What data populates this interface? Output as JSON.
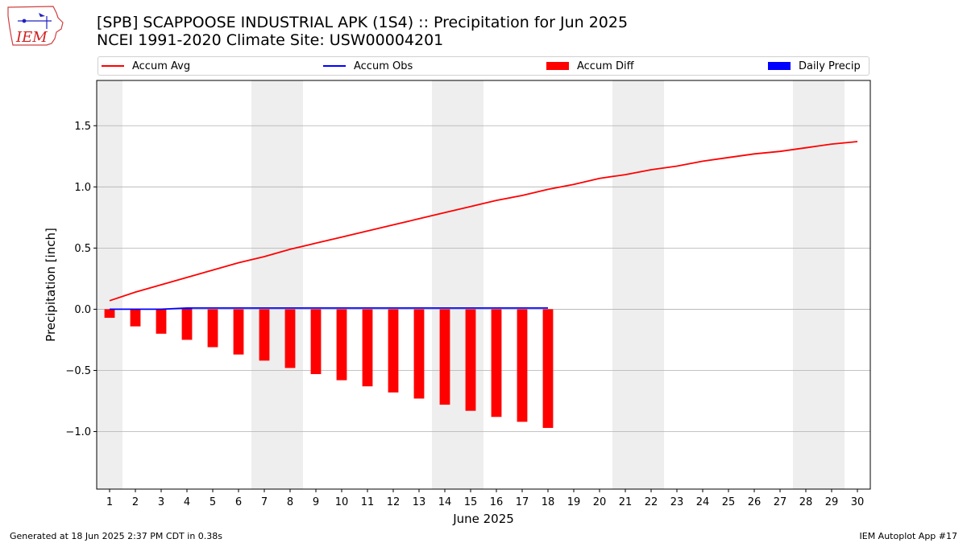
{
  "header": {
    "title_line1": "[SPB] SCAPPOOSE INDUSTRIAL APK (1S4) :: Precipitation for Jun 2025",
    "title_line2": "NCEI 1991-2020 Climate Site: USW00004201",
    "logo_text": "IEM"
  },
  "footer": {
    "left": "Generated at 18 Jun 2025 2:37 PM CDT in 0.38s",
    "right": "IEM Autoplot App #17"
  },
  "colors": {
    "accum_avg": "#ff0000",
    "accum_obs": "#0000ff",
    "accum_diff": "#ff0000",
    "daily_precip": "#0000ff",
    "weekend_shade": "#eeeeee",
    "grid": "#b0b0b0"
  },
  "chart_data": {
    "type": "line",
    "title": "[SPB] SCAPPOOSE INDUSTRIAL APK (1S4) :: Precipitation for Jun 2025",
    "subtitle": "NCEI 1991-2020 Climate Site: USW00004201",
    "xlabel": "June 2025",
    "ylabel": "Precipitation [inch]",
    "xlim": [
      0.5,
      30.5
    ],
    "ylim": [
      -1.47,
      1.87
    ],
    "yticks": [
      -1.0,
      -0.5,
      0.0,
      0.5,
      1.0,
      1.5
    ],
    "ytick_labels": [
      "−1.0",
      "−0.5",
      "0.0",
      "0.5",
      "1.0",
      "1.5"
    ],
    "x": [
      1,
      2,
      3,
      4,
      5,
      6,
      7,
      8,
      9,
      10,
      11,
      12,
      13,
      14,
      15,
      16,
      17,
      18,
      19,
      20,
      21,
      22,
      23,
      24,
      25,
      26,
      27,
      28,
      29,
      30
    ],
    "xtick_labels": [
      "1",
      "2",
      "3",
      "4",
      "5",
      "6",
      "7",
      "8",
      "9",
      "10",
      "11",
      "12",
      "13",
      "14",
      "15",
      "16",
      "17",
      "18",
      "19",
      "20",
      "21",
      "22",
      "23",
      "24",
      "25",
      "26",
      "27",
      "28",
      "29",
      "30"
    ],
    "weekend_days": [
      1,
      7,
      8,
      14,
      15,
      21,
      22,
      28,
      29
    ],
    "grid": "y",
    "legend_position": "top",
    "legend": [
      "Accum Avg",
      "Accum Obs",
      "Accum Diff",
      "Daily Precip"
    ],
    "series": [
      {
        "name": "Accum Avg",
        "kind": "line",
        "x": [
          1,
          2,
          3,
          4,
          5,
          6,
          7,
          8,
          9,
          10,
          11,
          12,
          13,
          14,
          15,
          16,
          17,
          18,
          19,
          20,
          21,
          22,
          23,
          24,
          25,
          26,
          27,
          28,
          29,
          30
        ],
        "values": [
          0.07,
          0.14,
          0.2,
          0.26,
          0.32,
          0.38,
          0.43,
          0.49,
          0.54,
          0.59,
          0.64,
          0.69,
          0.74,
          0.79,
          0.84,
          0.89,
          0.93,
          0.98,
          1.02,
          1.07,
          1.1,
          1.14,
          1.17,
          1.21,
          1.24,
          1.27,
          1.29,
          1.32,
          1.35,
          1.37
        ]
      },
      {
        "name": "Accum Obs",
        "kind": "line",
        "x": [
          1,
          2,
          3,
          4,
          5,
          6,
          7,
          8,
          9,
          10,
          11,
          12,
          13,
          14,
          15,
          16,
          17,
          18
        ],
        "values": [
          0.0,
          0.0,
          0.0,
          0.01,
          0.01,
          0.01,
          0.01,
          0.01,
          0.01,
          0.01,
          0.01,
          0.01,
          0.01,
          0.01,
          0.01,
          0.01,
          0.01,
          0.01
        ]
      },
      {
        "name": "Accum Diff",
        "kind": "bar",
        "x": [
          1,
          2,
          3,
          4,
          5,
          6,
          7,
          8,
          9,
          10,
          11,
          12,
          13,
          14,
          15,
          16,
          17,
          18
        ],
        "values": [
          -0.07,
          -0.14,
          -0.2,
          -0.25,
          -0.31,
          -0.37,
          -0.42,
          -0.48,
          -0.53,
          -0.58,
          -0.63,
          -0.68,
          -0.73,
          -0.78,
          -0.83,
          -0.88,
          -0.92,
          -0.97
        ]
      },
      {
        "name": "Daily Precip",
        "kind": "bar",
        "x": [
          4
        ],
        "values": [
          0.01
        ]
      }
    ]
  }
}
